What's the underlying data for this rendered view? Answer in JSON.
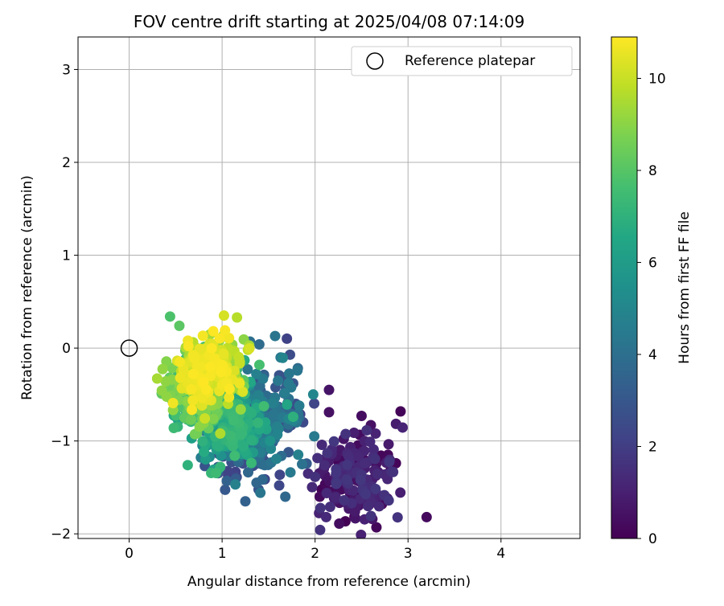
{
  "chart_data": {
    "type": "scatter",
    "title": "FOV centre drift starting at 2025/04/08 07:14:09",
    "xlabel": "Angular distance from reference (arcmin)",
    "ylabel": "Rotation from reference (arcmin)",
    "xlim": [
      -0.55,
      4.85
    ],
    "ylim": [
      -2.05,
      3.35
    ],
    "xticks": [
      0,
      1,
      2,
      3,
      4
    ],
    "yticks": [
      -2,
      -1,
      0,
      1,
      2,
      3
    ],
    "grid": true,
    "legend": {
      "position": "top-right",
      "entries": [
        "Reference platepar"
      ]
    },
    "reference_point": {
      "x": 0,
      "y": 0,
      "label": "Reference platepar"
    },
    "colorbar": {
      "label": "Hours from first FF file",
      "range": [
        0,
        10.9
      ],
      "ticks": [
        0,
        2,
        4,
        6,
        8,
        10
      ],
      "colormap": "viridis"
    },
    "clusters": [
      {
        "hours": [
          0.0,
          1.8
        ],
        "cx": 2.45,
        "cy": -1.35,
        "sx": 0.22,
        "sy": 0.28,
        "rot": -0.5,
        "n": 170
      },
      {
        "hours": [
          2.0,
          5.0
        ],
        "cx": 1.4,
        "cy": -0.85,
        "sx": 0.2,
        "sy": 0.28,
        "rot": -0.5,
        "n": 300
      },
      {
        "hours": [
          5.0,
          7.5
        ],
        "cx": 1.05,
        "cy": -0.75,
        "sx": 0.2,
        "sy": 0.22,
        "rot": -0.5,
        "n": 280
      },
      {
        "hours": [
          7.0,
          9.2
        ],
        "cx": 0.8,
        "cy": -0.4,
        "sx": 0.17,
        "sy": 0.2,
        "rot": -0.5,
        "n": 260
      },
      {
        "hours": [
          9.0,
          10.9
        ],
        "cx": 0.85,
        "cy": -0.25,
        "sx": 0.15,
        "sy": 0.18,
        "rot": -0.5,
        "n": 280
      }
    ],
    "outliers": [
      {
        "x": 3.2,
        "y": -1.82,
        "h": 0.3
      },
      {
        "x": 2.5,
        "y": -0.73,
        "h": 0.4
      },
      {
        "x": 2.6,
        "y": -0.83,
        "h": 0.5
      },
      {
        "x": 2.26,
        "y": -1.89,
        "h": 0.4
      },
      {
        "x": 2.66,
        "y": -1.93,
        "h": 0.2
      },
      {
        "x": 2.15,
        "y": -0.45,
        "h": 0.6
      },
      {
        "x": 2.15,
        "y": -0.69,
        "h": 0.5
      },
      {
        "x": 2.05,
        "y": -1.6,
        "h": 0.3
      },
      {
        "x": 1.57,
        "y": 0.13,
        "h": 4.2
      },
      {
        "x": 1.4,
        "y": 0.04,
        "h": 3.8
      },
      {
        "x": 1.3,
        "y": 0.07,
        "h": 4.0
      },
      {
        "x": 1.25,
        "y": -1.65,
        "h": 3.4
      },
      {
        "x": 1.68,
        "y": -1.6,
        "h": 3.7
      },
      {
        "x": 1.86,
        "y": -1.25,
        "h": 4.1
      },
      {
        "x": 1.37,
        "y": -1.45,
        "h": 3.6
      },
      {
        "x": 0.63,
        "y": -1.26,
        "h": 7.0
      },
      {
        "x": 0.98,
        "y": -1.28,
        "h": 7.2
      },
      {
        "x": 0.44,
        "y": 0.34,
        "h": 7.8
      },
      {
        "x": 0.54,
        "y": 0.24,
        "h": 8.1
      },
      {
        "x": 1.16,
        "y": 0.33,
        "h": 9.7
      },
      {
        "x": 1.02,
        "y": 0.35,
        "h": 10.2
      },
      {
        "x": 0.35,
        "y": -0.49,
        "h": 8.2
      },
      {
        "x": 1.2,
        "y": -0.66,
        "h": 9.2
      },
      {
        "x": 0.98,
        "y": -0.92,
        "h": 9.6
      },
      {
        "x": 0.48,
        "y": -0.86,
        "h": 7.4
      },
      {
        "x": 1.8,
        "y": -0.8,
        "h": 4.3
      },
      {
        "x": 1.83,
        "y": -0.62,
        "h": 4.5
      },
      {
        "x": 2.72,
        "y": -1.68,
        "h": 0.2
      },
      {
        "x": 2.78,
        "y": -1.62,
        "h": 0.7
      }
    ]
  }
}
